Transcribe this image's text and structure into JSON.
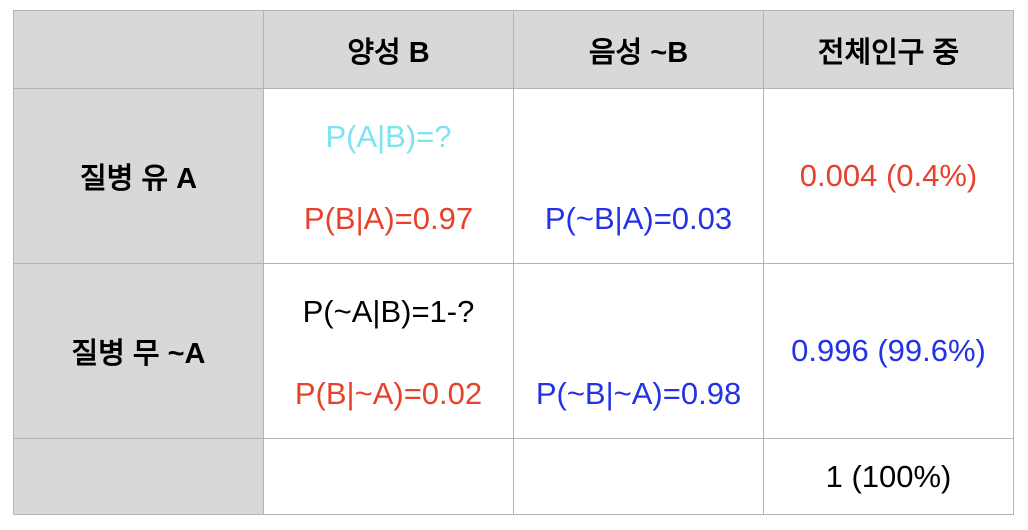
{
  "header": {
    "corner": "",
    "positive": "양성 B",
    "negative": "음성 ~B",
    "total": "전체인구 중"
  },
  "rows": [
    {
      "label": "질병 유 A",
      "positive_top": "P(A|B)=?",
      "positive_bottom": "P(B|A)=0.97",
      "negative_bottom": "P(~B|A)=0.03",
      "total": "0.004 (0.4%)"
    },
    {
      "label": "질병 무 ~A",
      "positive_top": "P(~A|B)=1-?",
      "positive_bottom": "P(B|~A)=0.02",
      "negative_bottom": "P(~B|~A)=0.98",
      "total": "0.996 (99.6%)"
    }
  ],
  "footer": {
    "total": "1 (100%)"
  },
  "colors": {
    "header_bg": "#d8d8d8",
    "cyan": "#7de3f0",
    "red": "#e8412b",
    "blue": "#2432e6",
    "border": "#b4b4b4"
  }
}
